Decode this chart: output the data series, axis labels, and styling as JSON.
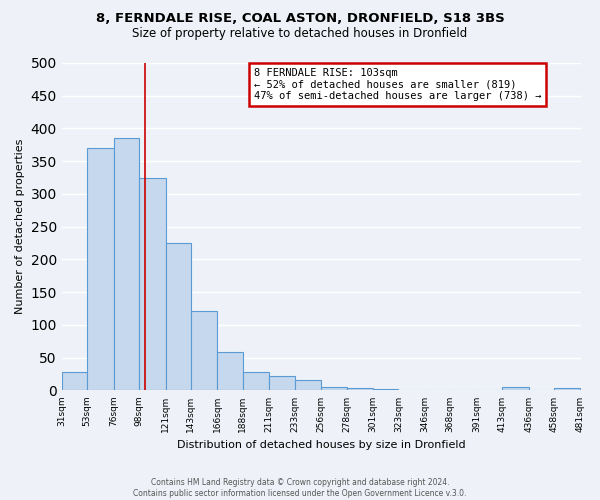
{
  "title1": "8, FERNDALE RISE, COAL ASTON, DRONFIELD, S18 3BS",
  "title2": "Size of property relative to detached houses in Dronfield",
  "xlabel": "Distribution of detached houses by size in Dronfield",
  "ylabel": "Number of detached properties",
  "bar_color": "#c5d8ed",
  "bar_edge_color": "#5b9bd5",
  "background_color": "#eef2f8",
  "grid_color": "#ffffff",
  "vline_x": 103,
  "vline_color": "#cc0000",
  "annotation_text": "8 FERNDALE RISE: 103sqm\n← 52% of detached houses are smaller (819)\n47% of semi-detached houses are larger (738) →",
  "annotation_box_color": "#ffffff",
  "annotation_box_edge_color": "#cc0000",
  "footer_text": "Contains HM Land Registry data © Crown copyright and database right 2024.\nContains public sector information licensed under the Open Government Licence v.3.0.",
  "bin_edges": [
    31,
    53,
    76,
    98,
    121,
    143,
    166,
    188,
    211,
    233,
    256,
    278,
    301,
    323,
    346,
    368,
    391,
    413,
    436,
    458,
    481
  ],
  "bin_labels": [
    "31sqm",
    "53sqm",
    "76sqm",
    "98sqm",
    "121sqm",
    "143sqm",
    "166sqm",
    "188sqm",
    "211sqm",
    "233sqm",
    "256sqm",
    "278sqm",
    "301sqm",
    "323sqm",
    "346sqm",
    "368sqm",
    "391sqm",
    "413sqm",
    "436sqm",
    "458sqm",
    "481sqm"
  ],
  "bar_heights": [
    28,
    370,
    385,
    325,
    225,
    121,
    59,
    28,
    22,
    16,
    6,
    4,
    2,
    1,
    1,
    1,
    1,
    5,
    1,
    4
  ],
  "ylim": [
    0,
    500
  ],
  "yticks": [
    0,
    50,
    100,
    150,
    200,
    250,
    300,
    350,
    400,
    450,
    500
  ]
}
